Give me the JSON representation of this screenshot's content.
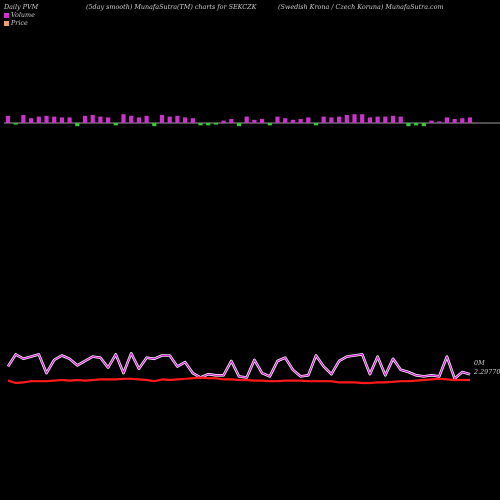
{
  "header": {
    "left": "Daily PVM",
    "middle": "(5day smooth) MunafaSutra(TM) charts for SEKCZK",
    "right": "(Swedish Krona  / Czech Koruna) MunafaSutra.com"
  },
  "legend": {
    "volume_label": "Volume",
    "price_label": "Price"
  },
  "colors": {
    "background": "#000000",
    "up_bar": "#cc33cc",
    "down_bar": "#33cc33",
    "baseline": "#cfcfcf",
    "volume_line_outer": "#ffffff",
    "volume_line_inner": "#cc22cc",
    "price_line": "#ff1a1a"
  },
  "labels": {
    "volume_last": "0M",
    "price_last": "2.29770"
  },
  "chart_data": {
    "type": "bar",
    "title": "",
    "series": [
      {
        "name": "Volume",
        "kind": "bar",
        "direction": [
          "up",
          "down",
          "up",
          "up",
          "up",
          "up",
          "up",
          "up",
          "up",
          "down",
          "up",
          "up",
          "up",
          "up",
          "down",
          "up",
          "up",
          "up",
          "up",
          "down",
          "up",
          "up",
          "up",
          "up",
          "up",
          "down",
          "down",
          "down",
          "up",
          "up",
          "down",
          "up",
          "up",
          "up",
          "down",
          "up",
          "up",
          "up",
          "up",
          "up",
          "down",
          "up",
          "up",
          "up",
          "up",
          "up",
          "up",
          "up",
          "up",
          "up",
          "up",
          "up",
          "down",
          "down",
          "down",
          "up",
          "up",
          "up",
          "up",
          "up",
          "up"
        ],
        "values": [
          9,
          2,
          10,
          6,
          8,
          9,
          8,
          7,
          7,
          4,
          9,
          10,
          8,
          7,
          3,
          11,
          9,
          7,
          9,
          4,
          10,
          8,
          9,
          7,
          6,
          3,
          3,
          2,
          3,
          5,
          4,
          8,
          4,
          5,
          3,
          8,
          6,
          4,
          5,
          7,
          3,
          8,
          7,
          8,
          10,
          11,
          11,
          7,
          8,
          8,
          9,
          8,
          4,
          3,
          4,
          3,
          2,
          7,
          5,
          6,
          7
        ]
      },
      {
        "name": "Volume",
        "kind": "line",
        "values": [
          15,
          26,
          22,
          24,
          26,
          9,
          21,
          25,
          22,
          16,
          20,
          24,
          23,
          14,
          26,
          9,
          27,
          13,
          23,
          22,
          25,
          25,
          15,
          19,
          9,
          5,
          8,
          7,
          7,
          20,
          6,
          5,
          21,
          9,
          6,
          20,
          23,
          12,
          6,
          7,
          25,
          15,
          8,
          20,
          24,
          25,
          26,
          8,
          24,
          7,
          22,
          12,
          10,
          7,
          6,
          7,
          6,
          24,
          4,
          10,
          8
        ]
      },
      {
        "name": "Price",
        "kind": "line",
        "values": [
          4,
          0,
          1,
          3,
          3,
          3,
          4,
          5,
          4,
          5,
          4,
          5,
          6,
          6,
          6,
          7,
          7,
          6,
          5,
          3,
          6,
          5,
          6,
          7,
          8,
          9,
          8,
          8,
          6,
          6,
          5,
          5,
          4,
          4,
          3,
          3,
          4,
          4,
          4,
          3,
          3,
          3,
          3,
          1,
          1,
          1,
          0,
          0,
          1,
          1,
          2,
          3,
          3,
          4,
          5,
          6,
          7,
          6,
          5,
          5,
          5
        ]
      }
    ]
  }
}
